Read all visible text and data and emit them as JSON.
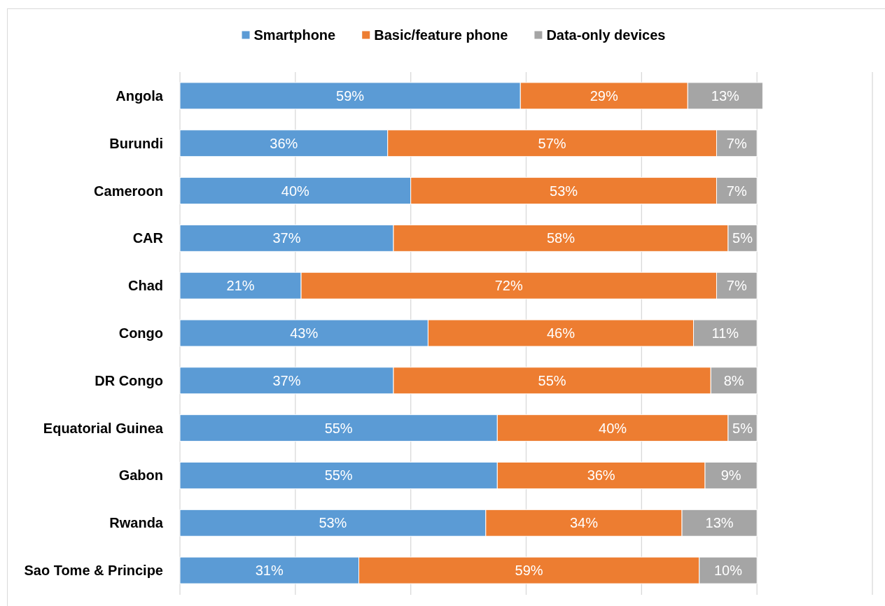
{
  "chart_data": {
    "type": "bar",
    "orientation": "horizontal",
    "stacked": true,
    "categories": [
      "Angola",
      "Burundi",
      "Cameroon",
      "CAR",
      "Chad",
      "Congo",
      "DR Congo",
      "Equatorial Guinea",
      "Gabon",
      "Rwanda",
      "Sao Tome & Principe"
    ],
    "series": [
      {
        "name": "Smartphone",
        "color": "#5b9bd5",
        "values": [
          59,
          36,
          40,
          37,
          21,
          43,
          37,
          55,
          55,
          53,
          31
        ],
        "value_labels": [
          "59%",
          "36%",
          "40%",
          "37%",
          "21%",
          "43%",
          "37%",
          "55%",
          "55%",
          "53%",
          "31%"
        ]
      },
      {
        "name": "Basic/feature phone",
        "color": "#ed7d31",
        "values": [
          29,
          57,
          53,
          58,
          72,
          46,
          55,
          40,
          36,
          34,
          59
        ],
        "value_labels": [
          "29%",
          "57%",
          "53%",
          "58%",
          "72%",
          "46%",
          "55%",
          "40%",
          "36%",
          "34%",
          "59%"
        ]
      },
      {
        "name": "Data-only devices",
        "color": "#a5a5a5",
        "values": [
          13,
          7,
          7,
          5,
          7,
          11,
          8,
          5,
          9,
          13,
          10
        ],
        "value_labels": [
          "13%",
          "7%",
          "7%",
          "5%",
          "7%",
          "11%",
          "8%",
          "5%",
          "9%",
          "13%",
          "10%"
        ]
      }
    ],
    "xlim": [
      0,
      120
    ],
    "xticks": [
      {
        "value": 0,
        "label": null
      },
      {
        "value": 20,
        "label": null
      },
      {
        "value": 40,
        "label": null
      },
      {
        "value": 60,
        "label": null
      },
      {
        "value": 80,
        "label": null
      },
      {
        "value": 100,
        "label": null
      },
      {
        "value": 120,
        "label": null
      }
    ],
    "grid": "x",
    "legend": "top",
    "tick_labels": "y"
  }
}
